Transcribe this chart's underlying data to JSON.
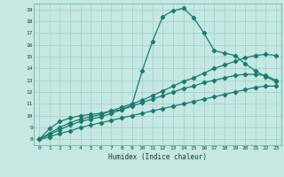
{
  "xlabel": "Humidex (Indice chaleur)",
  "xlim": [
    -0.5,
    23.5
  ],
  "ylim": [
    7.5,
    19.5
  ],
  "xticks": [
    0,
    1,
    2,
    3,
    4,
    5,
    6,
    7,
    8,
    9,
    10,
    11,
    12,
    13,
    14,
    15,
    16,
    17,
    18,
    19,
    20,
    21,
    22,
    23
  ],
  "yticks": [
    8,
    9,
    10,
    11,
    12,
    13,
    14,
    15,
    16,
    17,
    18,
    19
  ],
  "background_color": "#c5e8e2",
  "grid_color": "#9dccc4",
  "line_color": "#1a7a6e",
  "lines": [
    {
      "x": [
        0,
        1,
        2,
        3,
        4,
        5,
        6,
        7,
        8,
        9,
        10,
        11,
        12,
        13,
        14,
        15,
        16,
        17,
        18,
        19,
        20,
        21,
        22,
        23
      ],
      "y": [
        8,
        8.9,
        9.5,
        9.8,
        10.0,
        10.1,
        10.2,
        10.4,
        10.5,
        10.9,
        13.8,
        16.3,
        18.4,
        18.9,
        19.1,
        18.3,
        17.0,
        15.5,
        15.3,
        15.1,
        14.4,
        13.8,
        13.3,
        12.9
      ]
    },
    {
      "x": [
        0,
        1,
        2,
        3,
        4,
        5,
        6,
        7,
        8,
        9,
        10,
        11,
        12,
        13,
        14,
        15,
        16,
        17,
        18,
        19,
        20,
        21,
        22,
        23
      ],
      "y": [
        8,
        8.5,
        9.0,
        9.4,
        9.7,
        9.9,
        10.1,
        10.4,
        10.7,
        11.0,
        11.3,
        11.7,
        12.1,
        12.5,
        12.9,
        13.2,
        13.6,
        14.0,
        14.3,
        14.6,
        14.9,
        15.1,
        15.2,
        15.1
      ]
    },
    {
      "x": [
        0,
        1,
        2,
        3,
        4,
        5,
        6,
        7,
        8,
        9,
        10,
        11,
        12,
        13,
        14,
        15,
        16,
        17,
        18,
        19,
        20,
        21,
        22,
        23
      ],
      "y": [
        8,
        8.4,
        8.8,
        9.2,
        9.5,
        9.7,
        9.9,
        10.2,
        10.5,
        10.8,
        11.1,
        11.4,
        11.7,
        12.0,
        12.3,
        12.5,
        12.8,
        13.0,
        13.2,
        13.4,
        13.5,
        13.5,
        13.4,
        13.0
      ]
    },
    {
      "x": [
        0,
        1,
        2,
        3,
        4,
        5,
        6,
        7,
        8,
        9,
        10,
        11,
        12,
        13,
        14,
        15,
        16,
        17,
        18,
        19,
        20,
        21,
        22,
        23
      ],
      "y": [
        8,
        8.2,
        8.5,
        8.7,
        9.0,
        9.2,
        9.4,
        9.6,
        9.8,
        10.0,
        10.2,
        10.4,
        10.6,
        10.8,
        11.0,
        11.2,
        11.4,
        11.6,
        11.8,
        12.0,
        12.2,
        12.4,
        12.5,
        12.5
      ]
    }
  ]
}
